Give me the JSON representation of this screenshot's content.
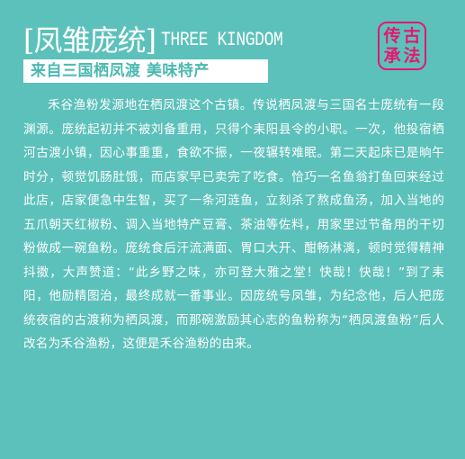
{
  "header": {
    "title_cn": "[凤雏庞统]",
    "title_en": "THREE KINGDOM",
    "subtitle": "来自三国栖凤渡 美味特产"
  },
  "seal": {
    "chars": [
      "传",
      "古",
      "承",
      "法"
    ],
    "color": "#e6176f"
  },
  "body": {
    "paragraph": "禾谷渔粉发源地在栖凤渡这个古镇。传说栖凤渡与三国名士庞统有一段渊源。庞统起初并不被刘备重用，只得个耒阳县令的小职。一次，他投宿栖河古渡小镇，因心事重重，食欲不振，一夜辗转难眠。第二天起床已是晌午时分，顿觉饥肠肚饿，而店家早已卖完了吃食。恰巧一名鱼翁打鱼回来经过此店，店家便急中生智，买了一条河涟鱼，立刻杀了熬成鱼汤，加入当地的五爪朝天红椒粉、调入当地特产豆膏、茶油等佐料，用家里过节备用的干切粉做成一碗鱼粉。庞统食后汗流满面、胃口大开、酣畅淋漓，顿时觉得精神抖擞，大声赞道：“此乡野之味，亦可登大雅之堂！快哉！快哉！”到了耒阳，他励精图治，最终成就一番事业。因庞统号凤雏，为纪念他，后人把庞统夜宿的古渡称为栖凤渡，而那碗激励其心志的鱼粉称为“栖凤渡鱼粉”后人改名为禾谷渔粉，这便是禾谷渔粉的由来。"
  },
  "colors": {
    "background": "#5cc1bb",
    "accent": "#e6176f",
    "text": "#ffffff"
  }
}
